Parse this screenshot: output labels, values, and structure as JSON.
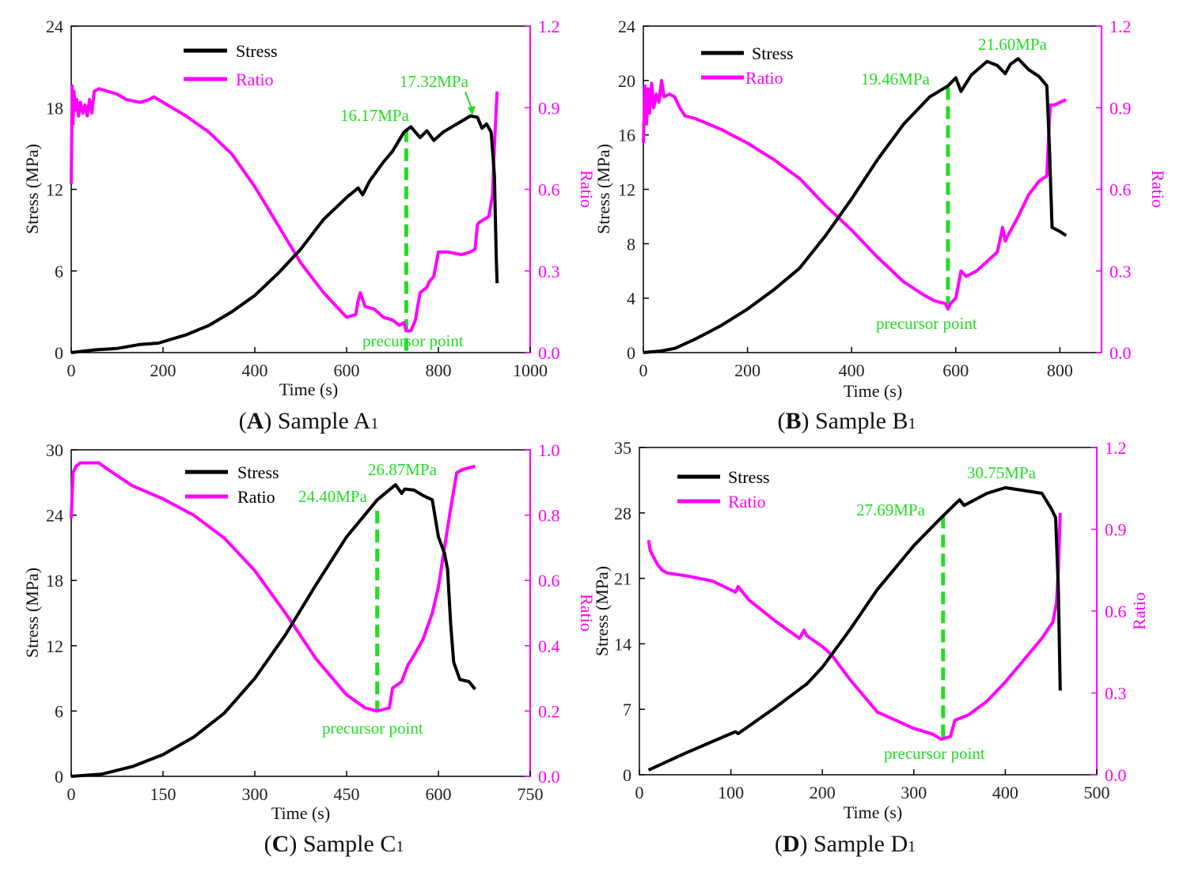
{
  "figure": {
    "layout": "2x2 grid of dual-axis line charts",
    "colors": {
      "stress": "#000000",
      "ratio": "#ff00ff",
      "annotation": "#22dd22",
      "frame": "#000000"
    }
  },
  "chart_data": [
    {
      "id": "A",
      "type": "line",
      "caption": {
        "letter": "A",
        "text": "Sample A",
        "subscript": "1"
      },
      "xlabel": "Time (s)",
      "ylabel": "Stress (MPa)",
      "y2label": "Ratio",
      "xlim": [
        0,
        1000
      ],
      "xticks": [
        0,
        200,
        400,
        600,
        800,
        1000
      ],
      "ylim": [
        0,
        24
      ],
      "yticks": [
        0,
        6,
        12,
        18,
        24
      ],
      "y2lim": [
        0,
        1.2
      ],
      "y2ticks": [
        0.0,
        0.3,
        0.6,
        0.9,
        1.2
      ],
      "y2ticklabels": [
        "0.0",
        "0.3",
        "0.6",
        "0.9",
        "1.2"
      ],
      "legend": {
        "position": "top-left",
        "entries": [
          "Stress",
          "Ratio"
        ]
      },
      "series": [
        {
          "name": "Stress",
          "axis": "left",
          "x": [
            0,
            50,
            100,
            150,
            190,
            250,
            300,
            350,
            400,
            450,
            500,
            550,
            600,
            625,
            635,
            650,
            680,
            700,
            725,
            740,
            760,
            775,
            790,
            810,
            830,
            850,
            870,
            885,
            895,
            905,
            915,
            922,
            926,
            928
          ],
          "y": [
            0,
            0.2,
            0.3,
            0.6,
            0.7,
            1.3,
            2,
            3,
            4.2,
            5.8,
            7.6,
            9.8,
            11.4,
            12.1,
            11.6,
            12.6,
            14,
            14.8,
            16.2,
            16.6,
            15.8,
            16.3,
            15.6,
            16.2,
            16.6,
            17,
            17.4,
            17.3,
            16.5,
            16.8,
            16.2,
            13,
            7,
            5.1
          ]
        },
        {
          "name": "Ratio",
          "axis": "right",
          "x": [
            0,
            2,
            4,
            6,
            8,
            12,
            16,
            20,
            25,
            30,
            35,
            40,
            45,
            50,
            60,
            80,
            100,
            120,
            150,
            170,
            180,
            200,
            250,
            300,
            350,
            400,
            450,
            500,
            550,
            600,
            620,
            625,
            630,
            640,
            660,
            680,
            700,
            715,
            725,
            730,
            740,
            750,
            760,
            775,
            780,
            790,
            800,
            820,
            850,
            870,
            880,
            885,
            890,
            910,
            918,
            922,
            925,
            928
          ],
          "y": [
            0.62,
            0.98,
            0.84,
            0.96,
            0.89,
            0.93,
            0.87,
            0.92,
            0.88,
            0.91,
            0.87,
            0.93,
            0.88,
            0.96,
            0.97,
            0.96,
            0.95,
            0.93,
            0.92,
            0.93,
            0.94,
            0.92,
            0.87,
            0.81,
            0.73,
            0.61,
            0.47,
            0.33,
            0.22,
            0.13,
            0.14,
            0.19,
            0.22,
            0.17,
            0.16,
            0.13,
            0.12,
            0.1,
            0.11,
            0.08,
            0.08,
            0.12,
            0.22,
            0.24,
            0.26,
            0.28,
            0.37,
            0.37,
            0.36,
            0.37,
            0.38,
            0.47,
            0.48,
            0.5,
            0.58,
            0.76,
            0.86,
            0.96
          ]
        }
      ],
      "annotations": [
        {
          "text": "16.17MPa",
          "anchor": "above dashed line at x=730"
        },
        {
          "text": "17.32MPa",
          "anchor": "arrow to stress peak at x=875"
        },
        {
          "text": "precursor point",
          "anchor": "below ratio minimum"
        }
      ],
      "markers": [
        {
          "kind": "dashed-vline",
          "x": 730,
          "y_from": 0.1,
          "y_to": 16.4
        }
      ]
    },
    {
      "id": "B",
      "type": "line",
      "caption": {
        "letter": "B",
        "text": "Sample B",
        "subscript": "1"
      },
      "xlabel": "Time (s)",
      "ylabel": "Stress (MPa)",
      "y2label": "Ratio",
      "xlim": [
        0,
        880
      ],
      "xticks": [
        0,
        200,
        400,
        600,
        800
      ],
      "ylim": [
        0,
        24
      ],
      "yticks": [
        0,
        4,
        8,
        12,
        16,
        20,
        24
      ],
      "y2lim": [
        0,
        1.2
      ],
      "y2ticks": [
        0.0,
        0.3,
        0.6,
        0.9,
        1.2
      ],
      "y2ticklabels": [
        "0.0",
        "0.3",
        "0.6",
        "0.9",
        "1.2"
      ],
      "legend": {
        "position": "top-left",
        "entries": [
          "Stress",
          "Ratio"
        ]
      },
      "series": [
        {
          "name": "Stress",
          "axis": "left",
          "x": [
            0,
            30,
            60,
            100,
            150,
            200,
            250,
            300,
            350,
            400,
            450,
            500,
            550,
            585,
            600,
            610,
            630,
            660,
            680,
            695,
            705,
            720,
            740,
            760,
            775,
            780,
            785,
            800,
            812
          ],
          "y": [
            0,
            0.1,
            0.3,
            1,
            2,
            3.2,
            4.6,
            6.2,
            8.6,
            11.3,
            14.2,
            16.8,
            18.8,
            19.6,
            20.2,
            19.2,
            20.4,
            21.4,
            21.1,
            20.5,
            21.2,
            21.6,
            20.8,
            20.3,
            19.6,
            15,
            9.2,
            8.9,
            8.6
          ]
        },
        {
          "name": "Ratio",
          "axis": "right",
          "x": [
            0,
            3,
            6,
            9,
            12,
            16,
            20,
            25,
            30,
            35,
            40,
            50,
            60,
            70,
            80,
            100,
            150,
            200,
            250,
            300,
            350,
            400,
            450,
            500,
            540,
            560,
            580,
            585,
            590,
            600,
            610,
            620,
            640,
            680,
            690,
            695,
            700,
            720,
            740,
            760,
            775,
            780,
            782,
            790,
            800,
            812
          ],
          "y": [
            0.77,
            0.98,
            0.84,
            0.97,
            0.88,
            0.99,
            0.9,
            0.95,
            0.92,
            1.0,
            0.94,
            0.95,
            0.94,
            0.9,
            0.87,
            0.86,
            0.82,
            0.77,
            0.71,
            0.64,
            0.54,
            0.45,
            0.35,
            0.26,
            0.21,
            0.19,
            0.18,
            0.16,
            0.18,
            0.2,
            0.3,
            0.28,
            0.3,
            0.37,
            0.46,
            0.41,
            0.43,
            0.5,
            0.58,
            0.63,
            0.65,
            0.86,
            0.91,
            0.91,
            0.92,
            0.93
          ]
        }
      ],
      "annotations": [
        {
          "text": "19.46MPa",
          "anchor": "above dashed line at x=585"
        },
        {
          "text": "21.60MPa",
          "anchor": "above stress peak at x=720"
        },
        {
          "text": "precursor point",
          "anchor": "below ratio minimum"
        }
      ],
      "markers": [
        {
          "kind": "dashed-vline",
          "x": 585,
          "y_from": 3.2,
          "y_to": 19.5
        }
      ]
    },
    {
      "id": "C",
      "type": "line",
      "caption": {
        "letter": "C",
        "text": "Sample C",
        "subscript": "1"
      },
      "xlabel": "Time (s)",
      "ylabel": "Stress (MPa)",
      "y2label": "Ratio",
      "xlim": [
        0,
        750
      ],
      "xticks": [
        0,
        150,
        300,
        450,
        600,
        750
      ],
      "ylim": [
        0,
        30
      ],
      "yticks": [
        0,
        6,
        12,
        18,
        24,
        30
      ],
      "y2lim": [
        0,
        1.0
      ],
      "y2ticks": [
        0.0,
        0.2,
        0.4,
        0.6,
        0.8,
        1.0
      ],
      "y2ticklabels": [
        "0.0",
        "0.2",
        "0.4",
        "0.6",
        "0.8",
        "1.0"
      ],
      "legend": {
        "position": "top-center",
        "entries": [
          "Stress",
          "Ratio"
        ]
      },
      "series": [
        {
          "name": "Stress",
          "axis": "left",
          "x": [
            0,
            50,
            100,
            150,
            200,
            250,
            300,
            350,
            400,
            450,
            500,
            530,
            540,
            545,
            560,
            575,
            590,
            600,
            610,
            615,
            620,
            625,
            635,
            650,
            660
          ],
          "y": [
            0,
            0.2,
            0.9,
            2,
            3.6,
            5.8,
            9,
            13,
            17.6,
            22,
            25.4,
            26.8,
            26,
            26.4,
            26.3,
            25.8,
            25.4,
            22,
            20.5,
            19,
            14,
            10.5,
            8.9,
            8.7,
            8
          ]
        },
        {
          "name": "Ratio",
          "axis": "right",
          "x": [
            0,
            3,
            8,
            15,
            30,
            45,
            60,
            100,
            150,
            200,
            250,
            300,
            350,
            400,
            450,
            480,
            500,
            520,
            525,
            540,
            550,
            560,
            575,
            590,
            600,
            610,
            620,
            630,
            640,
            660
          ],
          "y": [
            0.79,
            0.93,
            0.95,
            0.96,
            0.96,
            0.96,
            0.94,
            0.89,
            0.85,
            0.8,
            0.73,
            0.63,
            0.5,
            0.36,
            0.25,
            0.21,
            0.2,
            0.21,
            0.27,
            0.29,
            0.34,
            0.37,
            0.42,
            0.5,
            0.58,
            0.7,
            0.82,
            0.93,
            0.94,
            0.95
          ]
        }
      ],
      "annotations": [
        {
          "text": "24.40MPa",
          "anchor": "above dashed line at x=500"
        },
        {
          "text": "26.87MPa",
          "anchor": "above stress peak at x=530"
        },
        {
          "text": "precursor point",
          "anchor": "below ratio minimum"
        }
      ],
      "markers": [
        {
          "kind": "dashed-vline",
          "x": 500,
          "y_from": 6,
          "y_to": 24.4
        }
      ]
    },
    {
      "id": "D",
      "type": "line",
      "caption": {
        "letter": "D",
        "text": "Sample D",
        "subscript": "1"
      },
      "xlabel": "Time (s)",
      "ylabel": "Stress (MPa)",
      "y2label": "Ratio",
      "xlim": [
        0,
        500
      ],
      "xticks": [
        0,
        100,
        200,
        300,
        400,
        500
      ],
      "ylim": [
        0,
        35
      ],
      "yticks": [
        0,
        7,
        14,
        21,
        28,
        35
      ],
      "y2lim": [
        0,
        1.2
      ],
      "y2ticks": [
        0.0,
        0.3,
        0.6,
        0.9,
        1.2
      ],
      "y2ticklabels": [
        "0.0",
        "0.3",
        "0.6",
        "0.9",
        "1.2"
      ],
      "legend": {
        "position": "top-left",
        "entries": [
          "Stress",
          "Ratio"
        ]
      },
      "series": [
        {
          "name": "Stress",
          "axis": "left",
          "x": [
            10,
            50,
            100,
            105,
            108,
            150,
            180,
            183,
            200,
            230,
            260,
            300,
            330,
            350,
            355,
            380,
            400,
            420,
            440,
            450,
            455,
            458,
            460
          ],
          "y": [
            0.5,
            2.3,
            4.4,
            4.6,
            4.4,
            7.3,
            9.5,
            9.7,
            11.5,
            15.5,
            19.8,
            24.5,
            27.5,
            29.4,
            28.8,
            30.1,
            30.7,
            30.4,
            30.1,
            28.5,
            27.5,
            20,
            9
          ]
        },
        {
          "name": "Ratio",
          "axis": "right",
          "x": [
            10,
            12,
            20,
            25,
            30,
            50,
            80,
            105,
            108,
            120,
            150,
            175,
            180,
            183,
            200,
            210,
            230,
            260,
            300,
            320,
            330,
            340,
            345,
            360,
            380,
            400,
            420,
            440,
            452,
            456,
            458,
            460
          ],
          "y": [
            0.86,
            0.82,
            0.77,
            0.75,
            0.74,
            0.73,
            0.71,
            0.67,
            0.69,
            0.64,
            0.56,
            0.5,
            0.53,
            0.51,
            0.47,
            0.44,
            0.35,
            0.23,
            0.17,
            0.15,
            0.13,
            0.14,
            0.2,
            0.22,
            0.27,
            0.34,
            0.42,
            0.5,
            0.56,
            0.63,
            0.75,
            0.96
          ]
        }
      ],
      "annotations": [
        {
          "text": "27.69MPa",
          "anchor": "above dashed line at x=332"
        },
        {
          "text": "30.75MPa",
          "anchor": "above stress peak at x=400"
        },
        {
          "text": "precursor point",
          "anchor": "below ratio minimum"
        }
      ],
      "markers": [
        {
          "kind": "dashed-vline",
          "x": 332,
          "y_from": 3.8,
          "y_to": 27.7
        }
      ]
    }
  ]
}
